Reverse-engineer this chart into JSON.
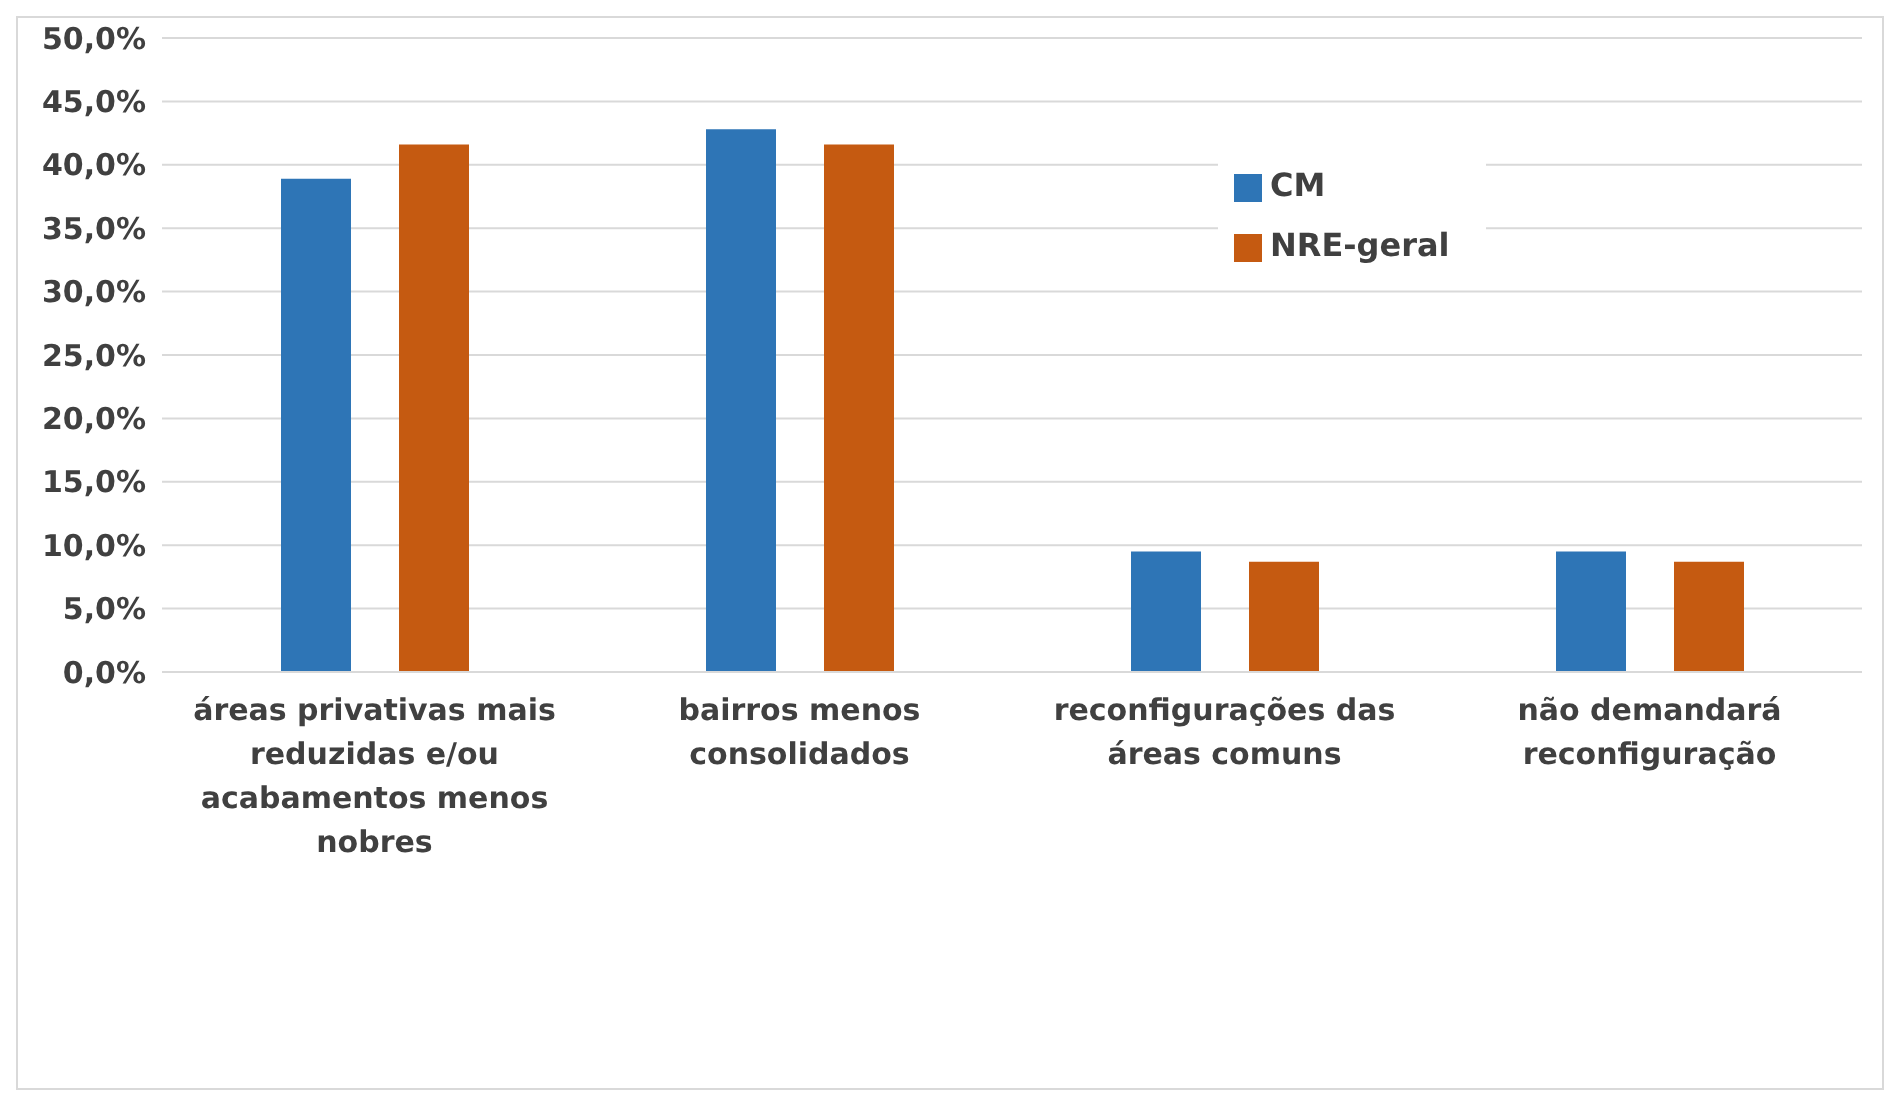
{
  "chart_data": {
    "type": "bar",
    "categories": [
      "áreas privativas mais reduzidas e/ou acabamentos menos nobres",
      "bairros menos consolidados",
      "reconfigurações das áreas comuns",
      "não demandará reconfiguração"
    ],
    "series": [
      {
        "name": "CM",
        "color": "#2e75b6",
        "values": [
          38.9,
          42.8,
          9.5,
          9.5
        ]
      },
      {
        "name": "NRE-geral",
        "color": "#c55a11",
        "values": [
          41.6,
          41.6,
          8.7,
          8.7
        ]
      }
    ],
    "ylim": [
      0,
      50
    ],
    "yticks": [
      {
        "value": 0,
        "label": "0,0%"
      },
      {
        "value": 5,
        "label": "5,0%"
      },
      {
        "value": 10,
        "label": "10,0%"
      },
      {
        "value": 15,
        "label": "15,0%"
      },
      {
        "value": 20,
        "label": "20,0%"
      },
      {
        "value": 25,
        "label": "25,0%"
      },
      {
        "value": 30,
        "label": "30,0%"
      },
      {
        "value": 35,
        "label": "35,0%"
      },
      {
        "value": 40,
        "label": "40,0%"
      },
      {
        "value": 45,
        "label": "45,0%"
      },
      {
        "value": 50,
        "label": "50,0%"
      }
    ],
    "grid": "y",
    "legend": "top right"
  }
}
